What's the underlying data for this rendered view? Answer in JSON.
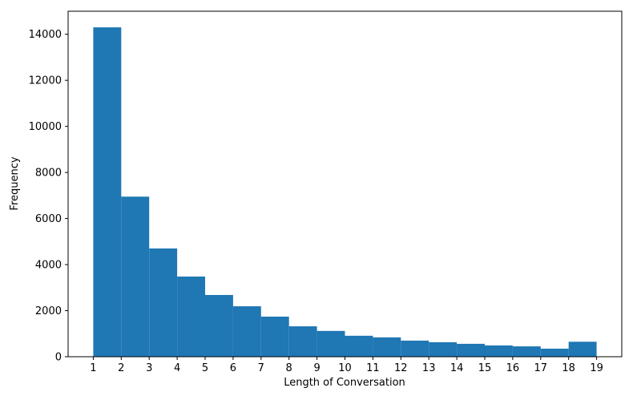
{
  "figure": {
    "background": "#ffffff",
    "bar_color": "#1f77b4",
    "spine_color": "#000000"
  },
  "chart_data": {
    "type": "bar",
    "subtype": "histogram",
    "title": "",
    "xlabel": "Length of Conversation",
    "ylabel": "Frequency",
    "bin_edges": [
      1,
      2,
      3,
      4,
      5,
      6,
      7,
      8,
      9,
      10,
      11,
      12,
      13,
      14,
      15,
      16,
      17,
      18,
      19
    ],
    "values": [
      14300,
      6950,
      4700,
      3480,
      2680,
      2190,
      1740,
      1320,
      1120,
      910,
      840,
      700,
      630,
      560,
      490,
      450,
      350,
      650
    ],
    "x_ticks": [
      1,
      2,
      3,
      4,
      5,
      6,
      7,
      8,
      9,
      10,
      11,
      12,
      13,
      14,
      15,
      16,
      17,
      18,
      19
    ],
    "y_ticks": [
      0,
      2000,
      4000,
      6000,
      8000,
      10000,
      12000,
      14000
    ],
    "xlim": [
      0.1,
      19.9
    ],
    "ylim": [
      0,
      15000
    ],
    "grid": false,
    "legend": null
  }
}
